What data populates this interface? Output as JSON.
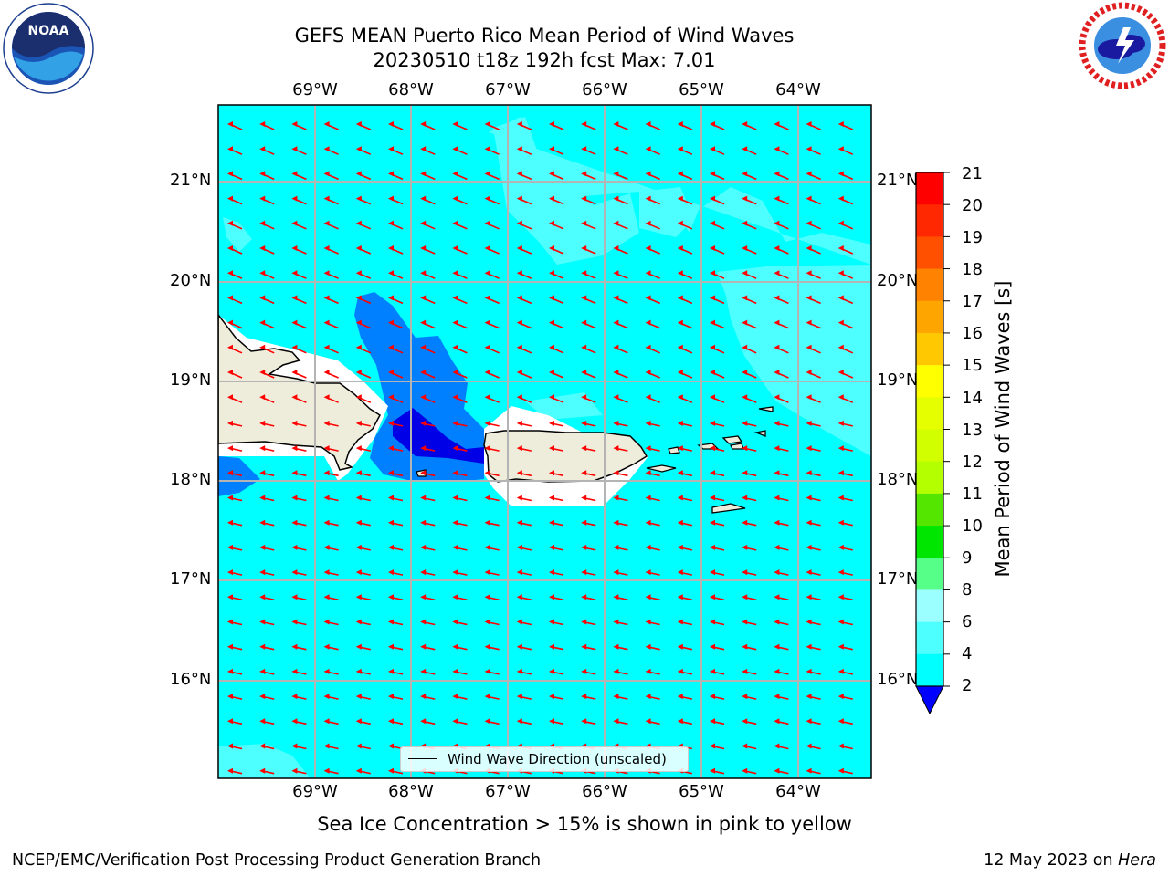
{
  "title": {
    "line1": "GEFS MEAN Puerto Rico Mean Period of Wind Waves",
    "line2": "20230510 t18z 192h fcst   Max: 7.01"
  },
  "logos": {
    "left": {
      "icon": "noaa-logo",
      "text": "NOAA"
    },
    "right": {
      "icon": "nws-logo",
      "text": "NATIONAL WEATHER SERVICE"
    }
  },
  "map": {
    "lat_labels": [
      "21°N",
      "20°N",
      "19°N",
      "18°N",
      "17°N",
      "16°N"
    ],
    "lon_labels": [
      "69°W",
      "68°W",
      "67°W",
      "66°W",
      "65°W",
      "64°W"
    ],
    "colors": {
      "ocean": "#00ffff",
      "ocean_light": "#4dffff",
      "band_2_4": "#0080ff",
      "band_lt2": "#0000e6",
      "land": "#eeeddb",
      "arrow": "#ff0000"
    }
  },
  "colorbar": {
    "title": "Mean Period of Wind Waves [s]",
    "ticks": [
      "21",
      "20",
      "19",
      "18",
      "17",
      "16",
      "15",
      "14",
      "13",
      "12",
      "11",
      "10",
      "9",
      "8",
      "6",
      "4",
      "2"
    ],
    "colors": [
      "#ff0000",
      "#ff2800",
      "#ff5000",
      "#ff8200",
      "#ffa500",
      "#ffc800",
      "#ffff00",
      "#e6ff00",
      "#d2ff00",
      "#b4ff00",
      "#55e600",
      "#00e600",
      "#55ff88",
      "#9bffff",
      "#4dffff",
      "#00ffff",
      "#0080ff"
    ],
    "extend_color": "#0000ff"
  },
  "legend": {
    "label": "Wind Wave Direction (unscaled)"
  },
  "caption": "Sea Ice Concentration > 15% is shown in pink to yellow",
  "footer": {
    "left": "NCEP/EMC/Verification Post Processing Product Generation Branch",
    "right_prefix": "12 May 2023 on",
    "right_host": "Hera"
  }
}
